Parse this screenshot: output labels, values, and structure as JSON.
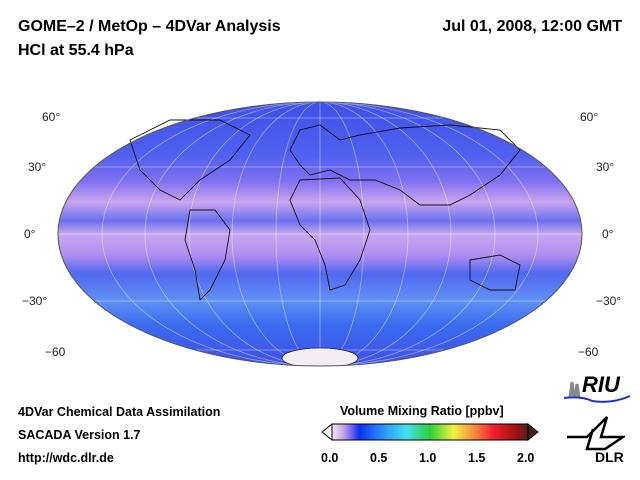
{
  "header": {
    "title": "GOME–2 / MetOp – 4DVar Analysis",
    "subtitle": "HCl at 55.4 hPa",
    "datetime": "Jul 01, 2008, 12:00 GMT"
  },
  "map": {
    "lat_labels_left": [
      "60°",
      "30°",
      "0°",
      "−30°",
      "−60"
    ],
    "lat_labels_right": [
      "60°",
      "30°",
      "0°",
      "−30°",
      "−60"
    ],
    "colors": {
      "base": "#4a5cf0",
      "band": "#c9a6ee",
      "pole": "#f4eef4"
    }
  },
  "footer": {
    "line1": "4DVar Chemical Data Assimilation",
    "line2": "SACADA Version 1.7",
    "line3": "http://wdc.dlr.de"
  },
  "colorbar": {
    "title": "Volume Mixing Ratio [ppbv]",
    "ticks": [
      "0.0",
      "0.5",
      "1.0",
      "1.5",
      "2.0"
    ],
    "min": 0.0,
    "max": 2.0
  },
  "logos": {
    "riu": "RIU",
    "dlr": "DLR"
  }
}
